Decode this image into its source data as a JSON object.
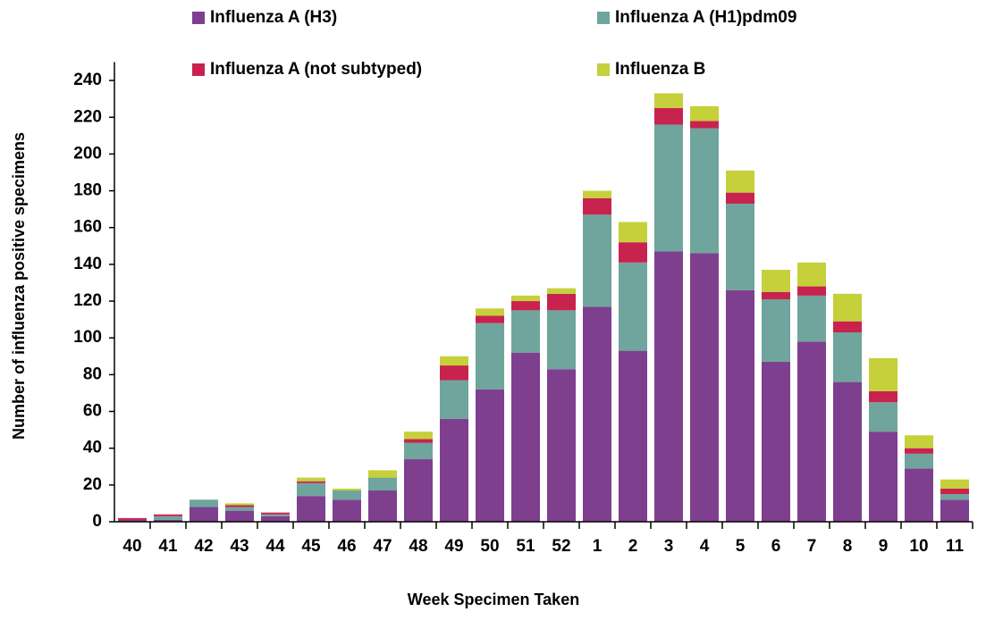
{
  "chart_data": {
    "type": "stacked_bar",
    "x_label": "Week Specimen Taken",
    "y_label": "Number of influenza positive specimens",
    "categories": [
      "40",
      "41",
      "42",
      "43",
      "44",
      "45",
      "46",
      "47",
      "48",
      "49",
      "50",
      "51",
      "52",
      "1",
      "2",
      "3",
      "4",
      "5",
      "6",
      "7",
      "8",
      "9",
      "10",
      "11"
    ],
    "series": [
      {
        "name": "Influenza A (H3)",
        "color": "#7f3f8f",
        "values": [
          1,
          1,
          8,
          6,
          3,
          14,
          12,
          17,
          34,
          56,
          72,
          92,
          83,
          117,
          93,
          147,
          146,
          126,
          87,
          98,
          76,
          49,
          29,
          12
        ]
      },
      {
        "name": "Influenza A (H1)pdm09",
        "color": "#6fa59d",
        "values": [
          0,
          2,
          4,
          2,
          1,
          7,
          5,
          7,
          9,
          21,
          36,
          23,
          32,
          50,
          48,
          69,
          68,
          47,
          34,
          25,
          27,
          16,
          8,
          3
        ]
      },
      {
        "name": "Influenza A (not subtyped)",
        "color": "#c8234e",
        "values": [
          1,
          1,
          0,
          1,
          1,
          1,
          0,
          0,
          2,
          8,
          4,
          5,
          9,
          9,
          11,
          9,
          4,
          6,
          4,
          5,
          6,
          6,
          3,
          3
        ]
      },
      {
        "name": "Influenza B",
        "color": "#c5d03a",
        "values": [
          0,
          0,
          0,
          1,
          0,
          2,
          1,
          4,
          4,
          5,
          4,
          3,
          3,
          4,
          11,
          8,
          8,
          12,
          12,
          13,
          15,
          18,
          7,
          5
        ]
      }
    ],
    "ylim": [
      0,
      250
    ],
    "yticks": [
      0,
      20,
      40,
      60,
      80,
      100,
      120,
      140,
      160,
      180,
      200,
      220,
      240
    ],
    "grid": false
  }
}
